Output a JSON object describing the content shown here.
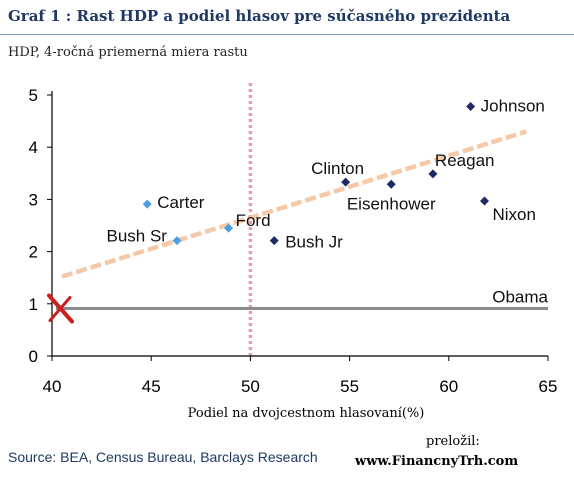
{
  "header": {
    "title": "Graf 1 : Rast HDP a podiel hlasov pre súčasného  prezidenta",
    "subtitle": "HDP, 4-ročná priemerná miera rastu"
  },
  "footer": {
    "source": "Source: BEA, Census Bureau, Barclays Research",
    "credit_label": "preložil:",
    "credit_site": "www.FinancnyTrh.com"
  },
  "colors": {
    "point_dark": "#1f2a63",
    "point_light": "#4a9fe3",
    "trend": "#f5c9a7",
    "vline": "#e8a0a8",
    "hline": "#8c8c8c",
    "marker": "#cc1f1f",
    "axis": "#000000"
  },
  "chart_data": {
    "type": "scatter",
    "title": "Graf 1 : Rast HDP a podiel hlasov pre súčasného  prezidenta",
    "ylabel": "HDP, 4-ročná priemerná miera rastu",
    "xlabel": "Podiel na dvojcestnom hlasovaní(%)",
    "xlim": [
      40,
      65
    ],
    "ylim": [
      0,
      5
    ],
    "xticks": [
      "40",
      "45",
      "50",
      "55",
      "60",
      "65"
    ],
    "yticks": [
      "0",
      "1",
      "2",
      "3",
      "4",
      "5"
    ],
    "grid": false,
    "points": [
      {
        "label": "Johnson",
        "x": 61.1,
        "y": 4.78,
        "style": "dark"
      },
      {
        "label": "Clinton",
        "x": 54.8,
        "y": 3.33,
        "style": "dark"
      },
      {
        "label": "Reagan",
        "x": 59.2,
        "y": 3.49,
        "style": "dark"
      },
      {
        "label": "Eisenhower",
        "x": 57.1,
        "y": 3.29,
        "style": "dark"
      },
      {
        "label": "Nixon",
        "x": 61.8,
        "y": 2.97,
        "style": "dark"
      },
      {
        "label": "Carter",
        "x": 44.8,
        "y": 2.91,
        "style": "light"
      },
      {
        "label": "Ford",
        "x": 48.9,
        "y": 2.45,
        "style": "light"
      },
      {
        "label": "Bush Sr",
        "x": 46.3,
        "y": 2.21,
        "style": "light"
      },
      {
        "label": "Bush Jr",
        "x": 51.2,
        "y": 2.21,
        "style": "dark"
      }
    ],
    "trendline": {
      "x": [
        40.5,
        63.9
      ],
      "y": [
        1.52,
        4.3
      ]
    },
    "vertical_reference": {
      "x": 50
    },
    "horizontal_reference": {
      "y": 0.91,
      "label": "Obama",
      "x_start": 40.2,
      "x_end": 65
    }
  }
}
